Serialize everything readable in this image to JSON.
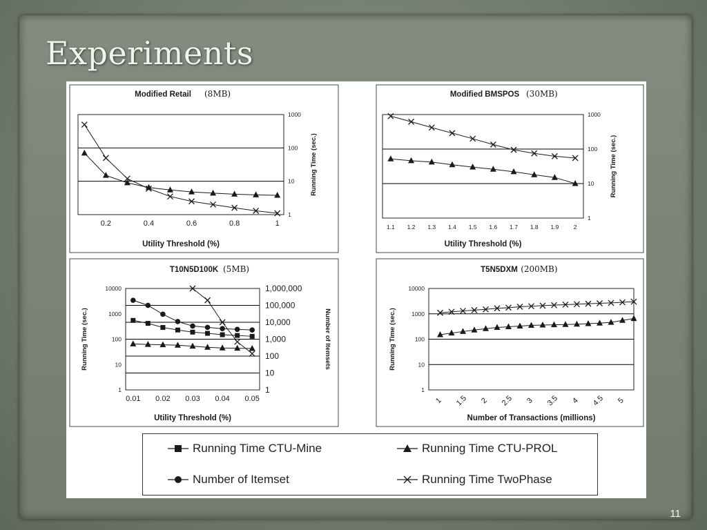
{
  "slide": {
    "title": "Experiments",
    "page_number": "11"
  },
  "colors": {
    "ink": "#1a1a1a",
    "grid": "#000000",
    "background": "#ffffff"
  },
  "legend": [
    {
      "series": "ctu_mine",
      "label": "Running Time CTU-Mine",
      "marker": "square"
    },
    {
      "series": "ctu_prol",
      "label": "Running Time CTU-PROL",
      "marker": "triangle"
    },
    {
      "series": "itemset",
      "label": "Number of Itemset",
      "marker": "circle"
    },
    {
      "series": "twophase",
      "label": "Running Time TwoPhase",
      "marker": "cross"
    }
  ],
  "chart_data": [
    {
      "id": "retail",
      "type": "line",
      "title": "Modified Retail",
      "title_note": "(8MB)",
      "xlabel": "Utility Threshold (%)",
      "ylabel": "Running Time (sec.)",
      "y_scale": "log",
      "y_side": "right",
      "ylim": [
        1,
        1000
      ],
      "y_ticks": [
        "1",
        "10",
        "100",
        "1000"
      ],
      "xlim": [
        0.07,
        1.03
      ],
      "x_ticks": [
        0.2,
        0.4,
        0.6,
        0.8,
        1
      ],
      "x_tick_labels": [
        "0.2",
        "0.4",
        "0.6",
        "0.8",
        "1"
      ],
      "gridlines": [
        10,
        100
      ],
      "series": [
        {
          "name": "Running Time CTU-PROL",
          "marker": "triangle",
          "x": [
            0.1,
            0.2,
            0.3,
            0.4,
            0.5,
            0.6,
            0.7,
            0.8,
            0.9,
            1.0
          ],
          "y": [
            70,
            15,
            9,
            6.5,
            5.5,
            4.8,
            4.4,
            4.1,
            3.9,
            3.8
          ]
        },
        {
          "name": "Running Time TwoPhase",
          "marker": "cross",
          "x": [
            0.1,
            0.2,
            0.3,
            0.4,
            0.5,
            0.6,
            0.7,
            0.8,
            0.9,
            1.0
          ],
          "y": [
            500,
            50,
            12,
            6,
            3.5,
            2.5,
            2,
            1.6,
            1.3,
            1.1
          ]
        }
      ]
    },
    {
      "id": "bmspos",
      "type": "line",
      "title": "Modified BMSPOS",
      "title_note": "(30MB)",
      "xlabel": "Utility Threshold (%)",
      "ylabel": "Running Time (sec.)",
      "y_scale": "log",
      "y_side": "right",
      "ylim": [
        1,
        1000
      ],
      "y_ticks": [
        "1",
        "10",
        "100",
        "1000"
      ],
      "xlim": [
        1.06,
        2.04
      ],
      "x_ticks": [
        1.1,
        1.2,
        1.3,
        1.4,
        1.5,
        1.6,
        1.7,
        1.8,
        1.9,
        2
      ],
      "x_tick_labels": [
        "1.1",
        "1.2",
        "1.3",
        "1.4",
        "1.5",
        "1.6",
        "1.7",
        "1.8",
        "1.9",
        "2"
      ],
      "gridlines": [
        10,
        100
      ],
      "series": [
        {
          "name": "Running Time CTU-PROL",
          "marker": "triangle",
          "x": [
            1.1,
            1.2,
            1.3,
            1.4,
            1.5,
            1.6,
            1.7,
            1.8,
            1.9,
            2.0
          ],
          "y": [
            52,
            46,
            42,
            35,
            30,
            26,
            22,
            18,
            15,
            10
          ]
        },
        {
          "name": "Running Time TwoPhase",
          "marker": "cross",
          "x": [
            1.1,
            1.2,
            1.3,
            1.4,
            1.5,
            1.6,
            1.7,
            1.8,
            1.9,
            2.0
          ],
          "y": [
            900,
            620,
            420,
            290,
            200,
            135,
            95,
            75,
            62,
            55
          ]
        }
      ]
    },
    {
      "id": "t10",
      "type": "line",
      "title": "T10N5D100K",
      "title_note": "(5MB)",
      "xlabel": "Utility Threshold (%)",
      "ylabel": "Running Time (sec.)",
      "y2label": "Number of Itemsets",
      "y_scale": "log",
      "ylim": [
        1,
        10000
      ],
      "y_ticks": [
        "1",
        "10",
        "100",
        "1000",
        "10000"
      ],
      "y2lim": [
        1,
        1000000
      ],
      "y2_ticks": [
        "1",
        "10",
        "100",
        "1,000",
        "10,000",
        "100,000",
        "1,000,000"
      ],
      "xlim": [
        0.0075,
        0.0525
      ],
      "x_ticks": [
        0.01,
        0.02,
        0.03,
        0.04,
        0.05
      ],
      "x_tick_labels": [
        "0.01",
        "0.02",
        "0.03",
        "0.04",
        "0.05"
      ],
      "gridlines_y2": [
        10,
        100,
        1000,
        10000,
        100000
      ],
      "series": [
        {
          "name": "Running Time CTU-Mine",
          "marker": "square",
          "axis": "y",
          "x": [
            0.01,
            0.015,
            0.02,
            0.025,
            0.03,
            0.035,
            0.04,
            0.045,
            0.05
          ],
          "y": [
            550,
            420,
            290,
            230,
            190,
            170,
            150,
            140,
            130
          ]
        },
        {
          "name": "Running Time CTU-PROL",
          "marker": "triangle",
          "axis": "y",
          "x": [
            0.01,
            0.015,
            0.02,
            0.025,
            0.03,
            0.035,
            0.04,
            0.045,
            0.05
          ],
          "y": [
            65,
            62,
            60,
            58,
            53,
            48,
            45,
            44,
            43
          ]
        },
        {
          "name": "Number of Itemset",
          "marker": "circle",
          "axis": "y2",
          "x": [
            0.01,
            0.015,
            0.02,
            0.025,
            0.03,
            0.035,
            0.04,
            0.045,
            0.05
          ],
          "y": [
            200000,
            100000,
            30000,
            11000,
            6000,
            5000,
            4200,
            3800,
            3500
          ]
        },
        {
          "name": "Running Time TwoPhase",
          "marker": "cross",
          "axis": "y2",
          "x": [
            0.03,
            0.035,
            0.04,
            0.045,
            0.05
          ],
          "y": [
            1000000,
            200000,
            10000,
            700,
            140
          ]
        }
      ]
    },
    {
      "id": "t5",
      "type": "line",
      "title": "T5N5DXM",
      "title_note": "(200MB)",
      "xlabel": "Number of Transactions (millions)",
      "ylabel": "Running Time (sec.)",
      "y_scale": "log",
      "y_side": "left",
      "ylim": [
        1,
        10000
      ],
      "y_ticks": [
        "1",
        "10",
        "100",
        "1000",
        "10000"
      ],
      "xlim": [
        0.75,
        5.25
      ],
      "x_ticks": [
        1,
        1.5,
        2,
        2.5,
        3,
        3.5,
        4,
        4.5,
        5
      ],
      "x_tick_labels": [
        "1",
        "1.5",
        "2",
        "2.5",
        "3",
        "3.5",
        "4",
        "4.5",
        "5"
      ],
      "gridlines": [
        10,
        100,
        1000
      ],
      "series": [
        {
          "name": "Running Time CTU-PROL",
          "marker": "triangle",
          "x": [
            1.0,
            1.25,
            1.5,
            1.75,
            2.0,
            2.25,
            2.5,
            2.75,
            3.0,
            3.25,
            3.5,
            3.75,
            4.0,
            4.25,
            4.5,
            4.75,
            5.0,
            5.25
          ],
          "y": [
            150,
            175,
            200,
            230,
            260,
            290,
            310,
            330,
            350,
            360,
            370,
            380,
            390,
            410,
            430,
            460,
            550,
            650
          ]
        },
        {
          "name": "Running Time TwoPhase",
          "marker": "cross",
          "x": [
            1.0,
            1.25,
            1.5,
            1.75,
            2.0,
            2.25,
            2.5,
            2.75,
            3.0,
            3.25,
            3.5,
            3.75,
            4.0,
            4.25,
            4.5,
            4.75,
            5.0,
            5.25
          ],
          "y": [
            1100,
            1200,
            1300,
            1400,
            1500,
            1650,
            1750,
            1900,
            2000,
            2100,
            2200,
            2300,
            2400,
            2500,
            2600,
            2700,
            2850,
            3000
          ]
        }
      ]
    }
  ]
}
